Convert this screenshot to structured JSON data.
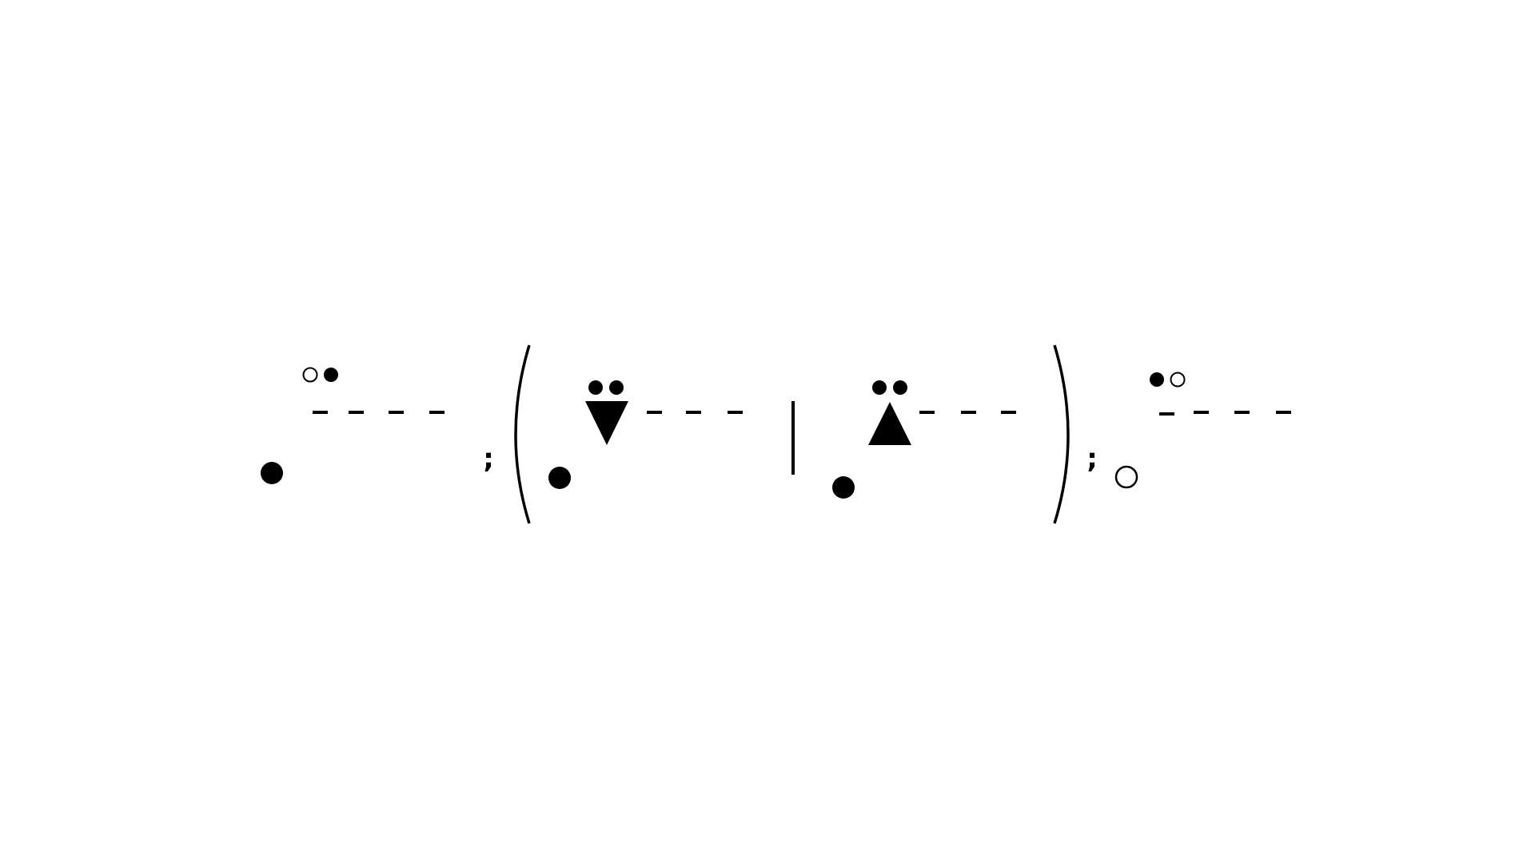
{
  "expression": {
    "description_free": true,
    "colors": {
      "ink": "#000000",
      "background": "#ffffff"
    },
    "symbols": {
      "semicolon": ";",
      "vertical_bar": "|"
    },
    "groups": [
      {
        "name": "group-1",
        "base_dot": "filled",
        "accent_dots": [
          "hollow",
          "filled"
        ],
        "dash_count": 4
      },
      {
        "name": "group-2",
        "base_dot": "filled",
        "accent_dots": [
          "filled",
          "filled"
        ],
        "triangle": "down",
        "dash_count": 3
      },
      {
        "name": "group-3",
        "base_dot": "filled",
        "accent_dots": [
          "filled",
          "filled"
        ],
        "triangle": "up",
        "dash_count": 3
      },
      {
        "name": "group-4",
        "base_dot": "hollow",
        "accent_dots": [
          "filled",
          "hollow"
        ],
        "dash_count": 4
      }
    ]
  }
}
